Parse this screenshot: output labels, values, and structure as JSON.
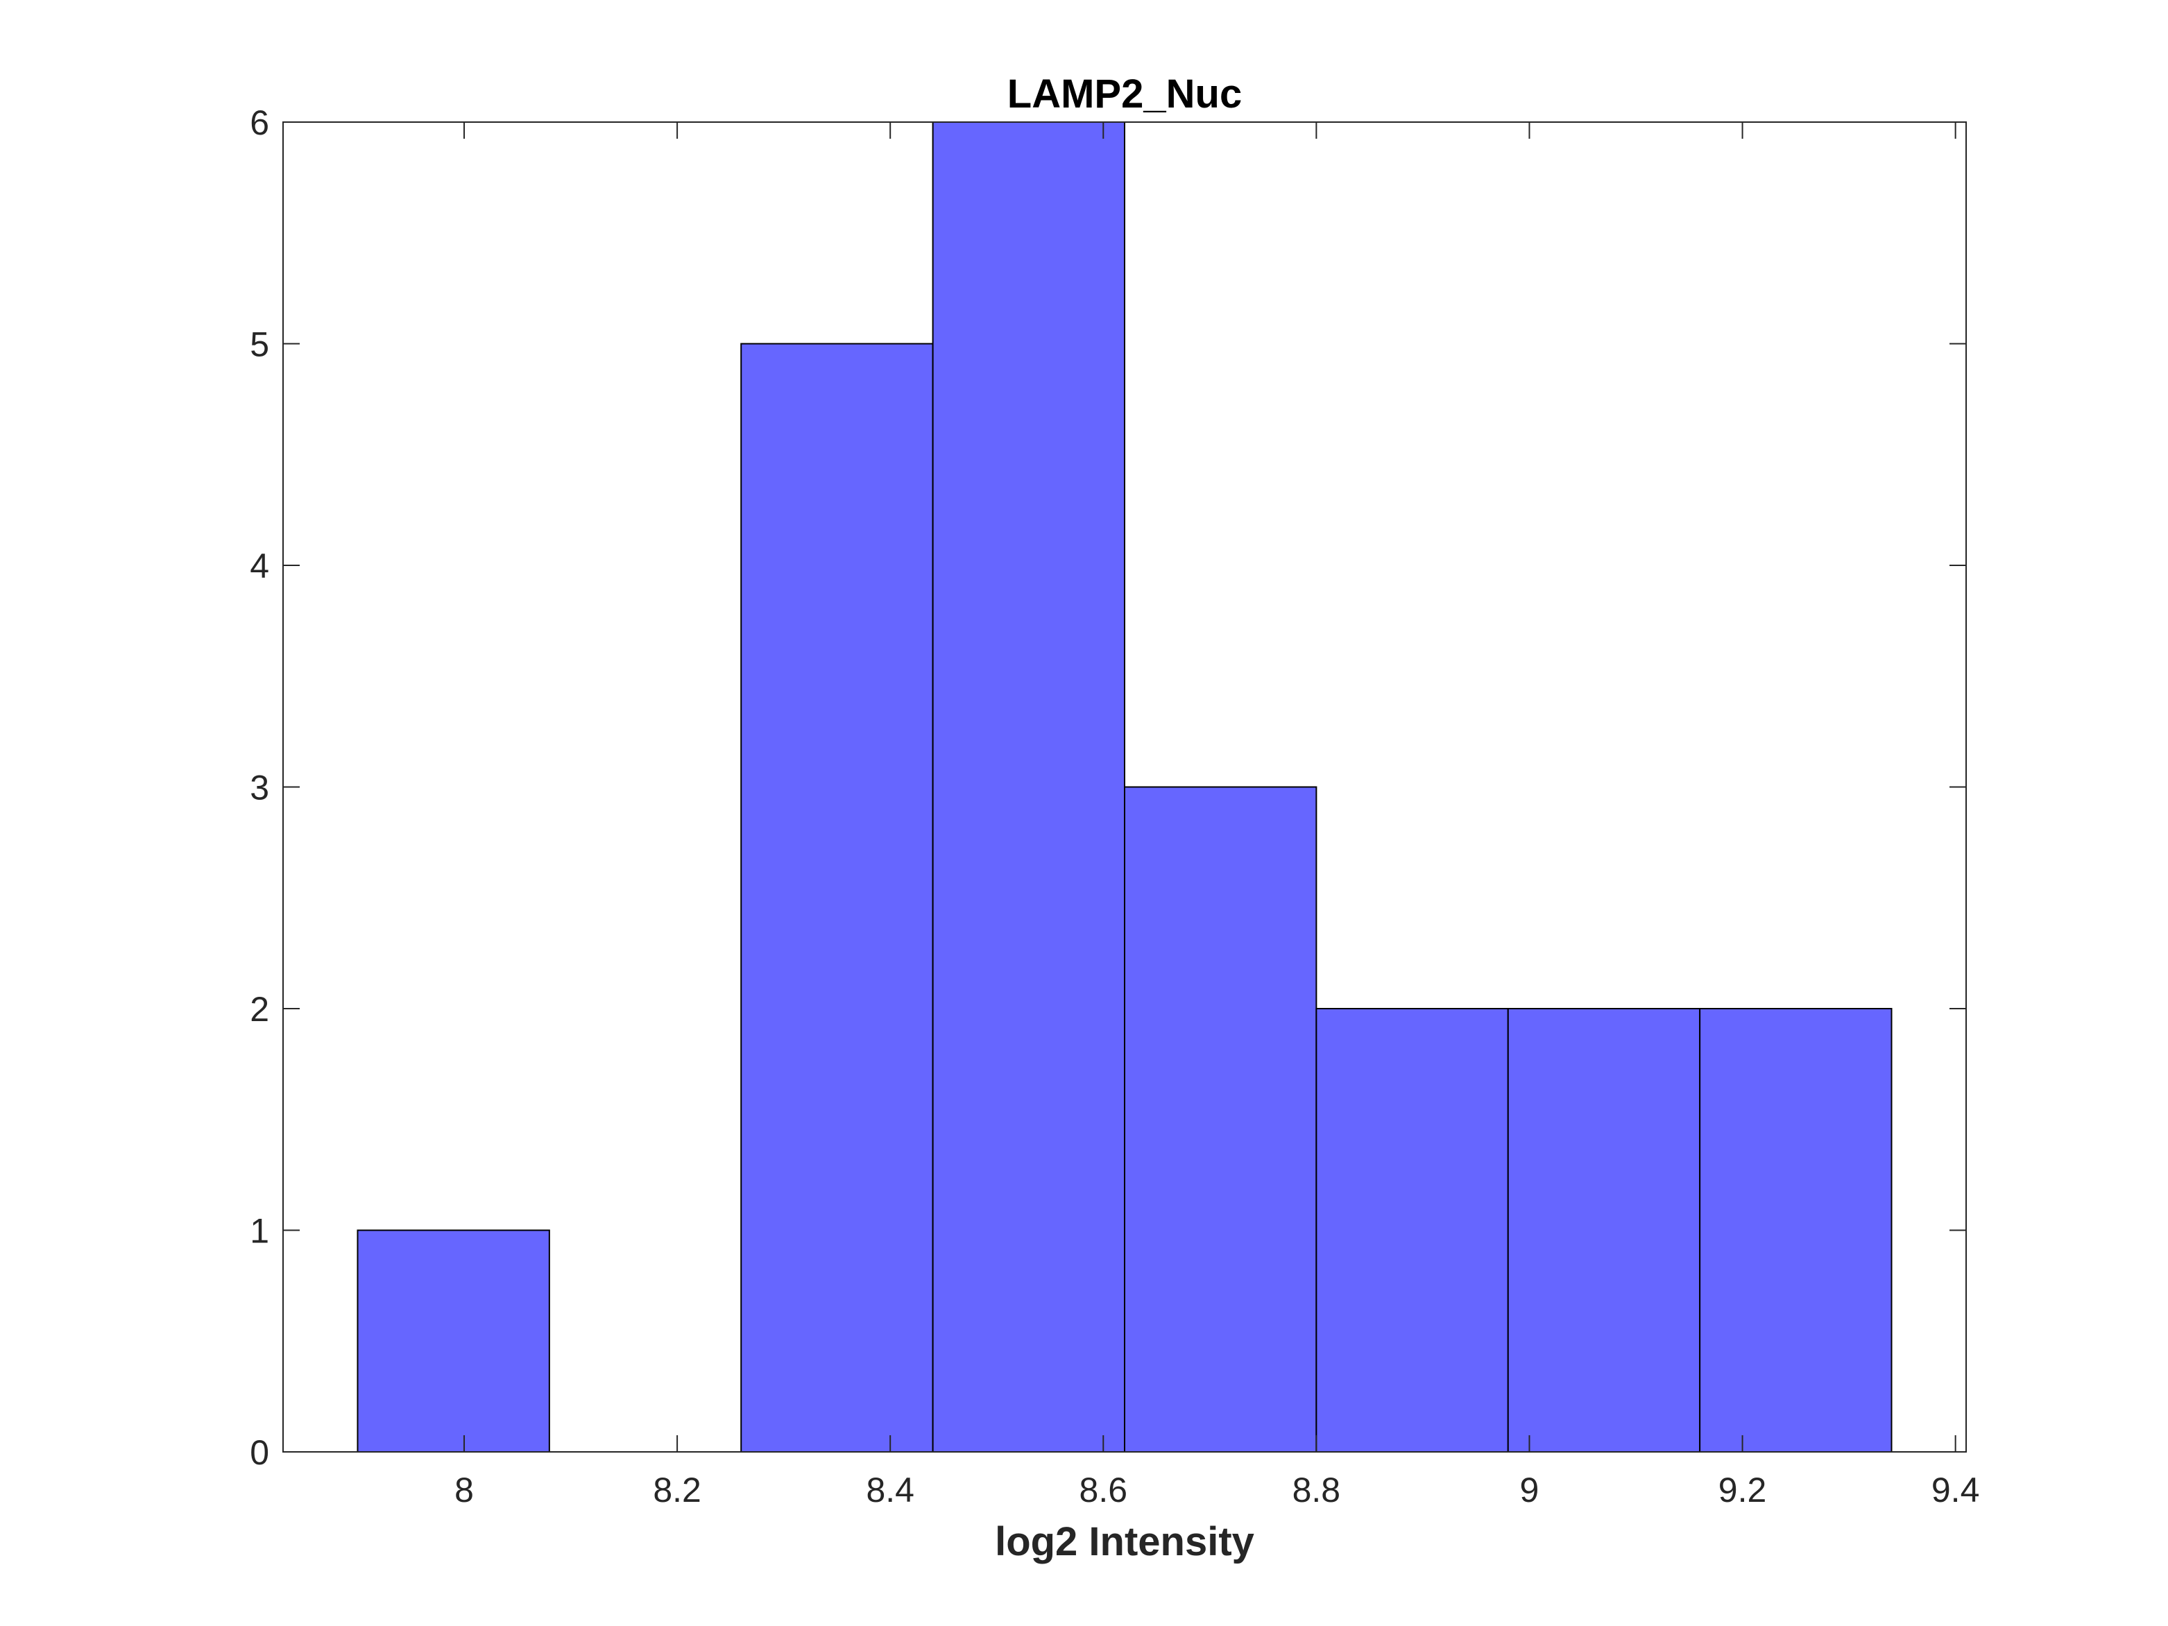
{
  "chart_data": {
    "type": "bar",
    "title": "LAMP2_Nuc",
    "xlabel": "log2 Intensity",
    "ylabel": "",
    "bins": [
      {
        "x0": 7.9,
        "x1": 8.08,
        "count": 1
      },
      {
        "x0": 8.08,
        "x1": 8.26,
        "count": 0
      },
      {
        "x0": 8.26,
        "x1": 8.44,
        "count": 5
      },
      {
        "x0": 8.44,
        "x1": 8.62,
        "count": 6
      },
      {
        "x0": 8.62,
        "x1": 8.8,
        "count": 3
      },
      {
        "x0": 8.8,
        "x1": 8.98,
        "count": 2
      },
      {
        "x0": 8.98,
        "x1": 9.16,
        "count": 2
      },
      {
        "x0": 9.16,
        "x1": 9.34,
        "count": 2
      }
    ],
    "xlim": [
      7.83,
      9.41
    ],
    "ylim": [
      0,
      6
    ],
    "xticks": [
      8,
      8.2,
      8.4,
      8.6,
      8.8,
      9,
      9.2,
      9.4
    ],
    "xtick_labels": [
      "8",
      "8.2",
      "8.4",
      "8.6",
      "8.8",
      "9",
      "9.2",
      "9.4"
    ],
    "yticks": [
      0,
      1,
      2,
      3,
      4,
      5,
      6
    ],
    "ytick_labels": [
      "0",
      "1",
      "2",
      "3",
      "4",
      "5",
      "6"
    ],
    "grid": false,
    "legend": "none",
    "colors": {
      "bar_fill": "#6666ff",
      "bar_edge": "#000000",
      "axes": "#262626"
    }
  }
}
